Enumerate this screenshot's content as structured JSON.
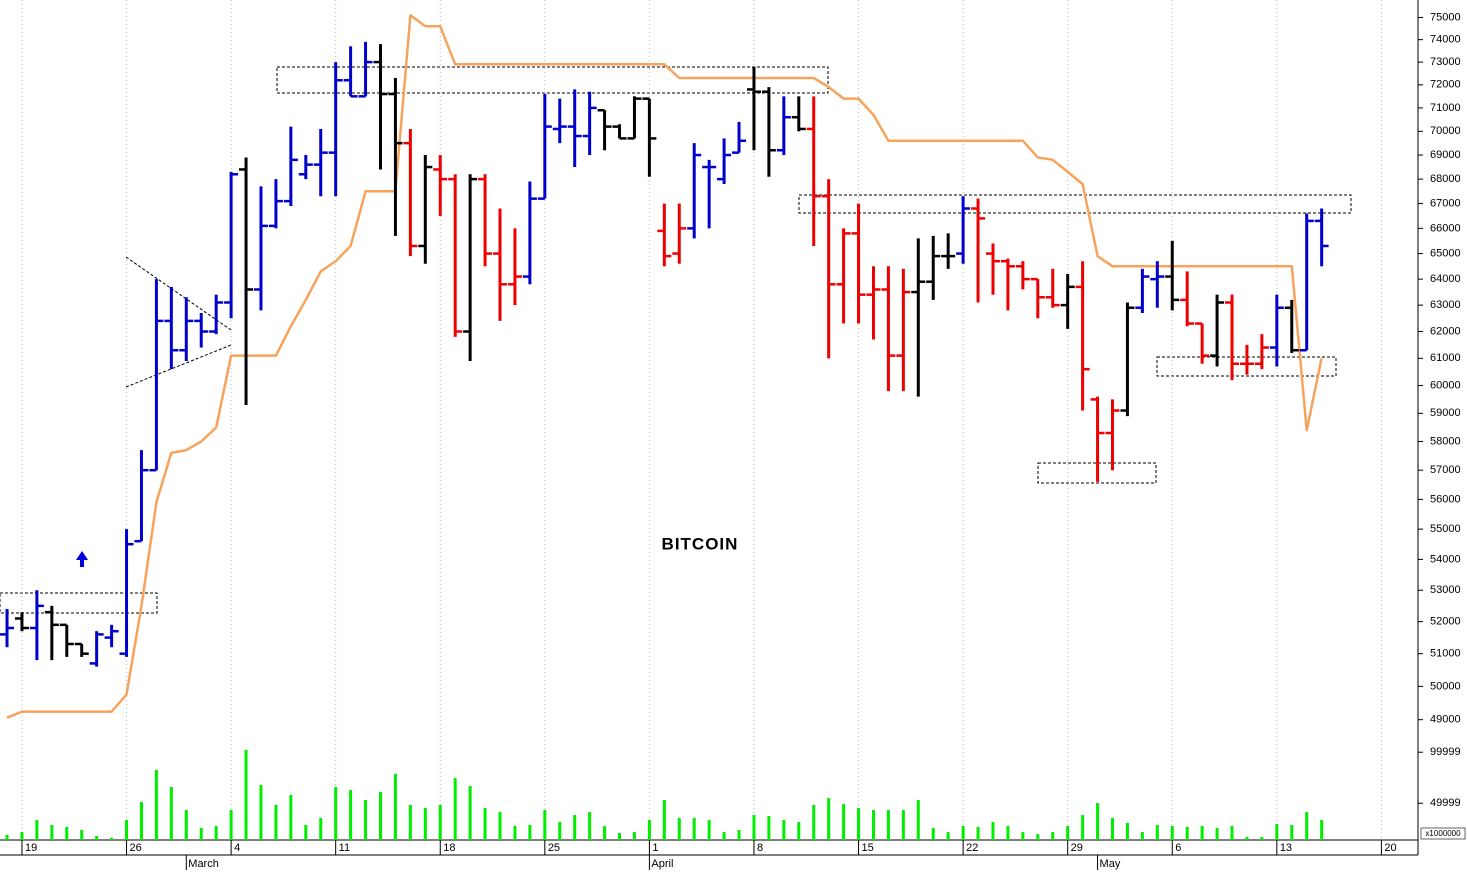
{
  "chart_data": {
    "type": "ohlc",
    "title": "BITCOIN",
    "log": true,
    "grid": true,
    "xlim": [
      -0.47,
      94.45
    ],
    "ylim": [
      48400,
      75800
    ],
    "yticks": [
      49000,
      50000,
      51000,
      52000,
      53000,
      54000,
      55000,
      56000,
      57000,
      58000,
      59000,
      60000,
      61000,
      62000,
      63000,
      64000,
      65000,
      66000,
      67000,
      68000,
      69000,
      70000,
      71000,
      72000,
      73000,
      74000,
      75000
    ],
    "xticks": [
      {
        "value": 1,
        "label": "19"
      },
      {
        "value": 8,
        "label": "26"
      },
      {
        "value": 15,
        "label": "4"
      },
      {
        "value": 22,
        "label": "11"
      },
      {
        "value": 29,
        "label": "18"
      },
      {
        "value": 36,
        "label": "25"
      },
      {
        "value": 43,
        "label": "1"
      },
      {
        "value": 50,
        "label": "8"
      },
      {
        "value": 57,
        "label": "15"
      },
      {
        "value": 64,
        "label": "22"
      },
      {
        "value": 71,
        "label": "29"
      },
      {
        "value": 78,
        "label": "6"
      },
      {
        "value": 85,
        "label": "13"
      },
      {
        "value": 92,
        "label": "20"
      }
    ],
    "month_ticks": [
      {
        "value": 12,
        "label": "March"
      },
      {
        "value": 43,
        "label": "April"
      },
      {
        "value": 73,
        "label": "May"
      }
    ],
    "x": [
      0,
      1,
      2,
      3,
      4,
      5,
      6,
      7,
      8,
      9,
      10,
      11,
      12,
      13,
      14,
      15,
      16,
      17,
      18,
      19,
      20,
      21,
      22,
      23,
      24,
      25,
      26,
      27,
      28,
      29,
      30,
      31,
      32,
      33,
      34,
      35,
      36,
      37,
      38,
      39,
      40,
      41,
      42,
      43,
      44,
      45,
      46,
      47,
      48,
      49,
      50,
      51,
      52,
      53,
      54,
      55,
      56,
      57,
      58,
      59,
      60,
      61,
      62,
      63,
      64,
      65,
      66,
      67,
      68,
      69,
      70,
      71,
      72,
      73,
      74,
      75,
      76,
      77,
      78,
      79,
      80,
      81,
      82,
      83,
      84,
      85,
      86,
      87,
      88
    ],
    "open": [
      51600,
      52100,
      51800,
      52300,
      51900,
      51300,
      50700,
      51500,
      51000,
      54600,
      57000,
      62400,
      61300,
      62400,
      62000,
      63100,
      68400,
      63600,
      66100,
      67100,
      68200,
      68600,
      69100,
      72200,
      71500,
      73000,
      71600,
      69500,
      65300,
      68400,
      68000,
      62000,
      68000,
      65000,
      63800,
      64100,
      67200,
      70100,
      70200,
      69800,
      70900,
      70200,
      69700,
      71400,
      65900,
      65000,
      66000,
      68500,
      68000,
      69100,
      71800,
      71700,
      69200,
      70600,
      70100,
      67300,
      63800,
      65800,
      63400,
      63600,
      61100,
      63500,
      63900,
      64900,
      65000,
      66800,
      65000,
      64700,
      64500,
      64000,
      63300,
      63000,
      63700,
      59500,
      58300,
      59100,
      62900,
      64000,
      64100,
      63200,
      62300,
      61100,
      63100,
      60800,
      60800,
      61400,
      62900,
      61300,
      66300
    ],
    "high": [
      52400,
      52300,
      53000,
      52500,
      51900,
      51300,
      51700,
      51900,
      55000,
      57700,
      64000,
      63700,
      63300,
      62700,
      63400,
      68300,
      68900,
      67700,
      68000,
      70200,
      69000,
      70100,
      73000,
      73700,
      73900,
      73800,
      72300,
      70100,
      69000,
      69000,
      68200,
      68200,
      68200,
      66800,
      66000,
      67900,
      71600,
      71400,
      71800,
      71700,
      70900,
      70300,
      71500,
      71400,
      67000,
      67000,
      69500,
      68800,
      69700,
      70400,
      72800,
      71900,
      71500,
      71500,
      71500,
      68000,
      66000,
      67000,
      64500,
      64500,
      64400,
      65600,
      65700,
      65800,
      67300,
      67200,
      65400,
      64800,
      64700,
      64000,
      64400,
      64200,
      64700,
      59600,
      59500,
      63100,
      64400,
      64700,
      65500,
      64300,
      62300,
      63400,
      63400,
      61500,
      61900,
      63400,
      63200,
      66600,
      66800
    ],
    "low": [
      51200,
      51700,
      50800,
      50800,
      50900,
      50900,
      50600,
      51200,
      50900,
      54600,
      57000,
      60600,
      60900,
      61400,
      61900,
      62500,
      59300,
      62800,
      66000,
      66900,
      68000,
      67300,
      67300,
      71500,
      71500,
      68400,
      65700,
      64900,
      64600,
      66500,
      61800,
      60900,
      64500,
      62400,
      63000,
      63800,
      67200,
      69500,
      68500,
      69000,
      69200,
      69700,
      69700,
      68100,
      64500,
      64600,
      65600,
      66000,
      67800,
      69100,
      69200,
      68100,
      69000,
      70000,
      65300,
      61000,
      62300,
      62300,
      61700,
      59800,
      59800,
      59600,
      63200,
      64400,
      64600,
      63100,
      63400,
      62800,
      63600,
      62500,
      62900,
      62100,
      59100,
      56600,
      57000,
      58900,
      62700,
      62900,
      62800,
      62200,
      60800,
      60700,
      60200,
      60400,
      60600,
      60700,
      61200,
      61300,
      64500
    ],
    "close": [
      51800,
      51800,
      52500,
      51900,
      51300,
      51000,
      51600,
      51700,
      54500,
      57000,
      62400,
      61300,
      62400,
      62000,
      63100,
      68200,
      63600,
      66100,
      67100,
      68800,
      68600,
      69100,
      72200,
      71500,
      73000,
      71600,
      69500,
      65300,
      68500,
      68000,
      62000,
      68000,
      65000,
      63800,
      64100,
      67200,
      70200,
      70200,
      69800,
      71000,
      70200,
      69700,
      71400,
      69700,
      64900,
      66000,
      69000,
      68500,
      69000,
      69600,
      71700,
      69200,
      70600,
      70100,
      67300,
      63800,
      65800,
      63400,
      63600,
      61100,
      63500,
      63900,
      64900,
      64900,
      66800,
      66400,
      64700,
      64500,
      64000,
      63300,
      63000,
      63700,
      60600,
      58300,
      59100,
      62900,
      64100,
      64100,
      63200,
      62300,
      61100,
      63100,
      60800,
      60800,
      61400,
      62900,
      61300,
      66300,
      65300
    ],
    "bar_colors": [
      "#0000cc",
      "#000000",
      "#0000cc",
      "#000000",
      "#000000",
      "#000000",
      "#0000cc",
      "#0000cc",
      "#0000cc",
      "#0000cc",
      "#0000cc",
      "#0000cc",
      "#0000cc",
      "#0000cc",
      "#0000cc",
      "#0000cc",
      "#000000",
      "#0000cc",
      "#0000cc",
      "#0000cc",
      "#0000cc",
      "#0000cc",
      "#0000cc",
      "#0000cc",
      "#0000cc",
      "#000000",
      "#000000",
      "#ee0000",
      "#000000",
      "#ee0000",
      "#ee0000",
      "#000000",
      "#ee0000",
      "#ee0000",
      "#ee0000",
      "#0000cc",
      "#0000cc",
      "#0000cc",
      "#0000cc",
      "#0000cc",
      "#000000",
      "#000000",
      "#000000",
      "#000000",
      "#ee0000",
      "#ee0000",
      "#0000cc",
      "#0000cc",
      "#0000cc",
      "#0000cc",
      "#000000",
      "#000000",
      "#0000cc",
      "#000000",
      "#ee0000",
      "#ee0000",
      "#ee0000",
      "#ee0000",
      "#ee0000",
      "#ee0000",
      "#ee0000",
      "#000000",
      "#000000",
      "#000000",
      "#0000cc",
      "#ee0000",
      "#ee0000",
      "#ee0000",
      "#ee0000",
      "#ee0000",
      "#ee0000",
      "#000000",
      "#ee0000",
      "#ee0000",
      "#ee0000",
      "#000000",
      "#0000cc",
      "#0000cc",
      "#000000",
      "#ee0000",
      "#ee0000",
      "#000000",
      "#ee0000",
      "#ee0000",
      "#ee0000",
      "#0000cc",
      "#000000",
      "#0000cc",
      "#0000cc"
    ],
    "line": {
      "color": "#f7a35c",
      "values": [
        49060,
        49240,
        49240,
        49240,
        49240,
        49240,
        49240,
        49240,
        49750,
        52500,
        55900,
        57600,
        57700,
        58000,
        58500,
        61100,
        61100,
        61100,
        61100,
        62200,
        63200,
        64300,
        64700,
        65300,
        67500,
        67500,
        67500,
        75100,
        74600,
        74600,
        72900,
        72900,
        72900,
        72900,
        72900,
        72900,
        72900,
        72900,
        72900,
        72900,
        72900,
        72900,
        72900,
        72900,
        72900,
        72300,
        72300,
        72300,
        72300,
        72300,
        72300,
        72300,
        72300,
        72300,
        72300,
        71900,
        71400,
        71400,
        70700,
        69600,
        69600,
        69600,
        69600,
        69600,
        69600,
        69600,
        69600,
        69600,
        69600,
        68900,
        68800,
        68300,
        67800,
        64900,
        64500,
        64500,
        64500,
        64500,
        64500,
        64500,
        64500,
        64500,
        64500,
        64500,
        64500,
        64500,
        64500,
        58400,
        61000
      ]
    },
    "volume": {
      "color": "#00ee00",
      "ylim": [
        14000,
        110000
      ],
      "yticks": [
        49999,
        99999
      ],
      "unit_label": "x1000000",
      "values": [
        18900,
        21800,
        33600,
        28700,
        26700,
        23800,
        17900,
        16000,
        33600,
        51200,
        82600,
        65900,
        43400,
        25800,
        27700,
        43400,
        102200,
        67900,
        48300,
        58100,
        28700,
        35600,
        65900,
        63000,
        53200,
        61000,
        78700,
        48300,
        45300,
        48300,
        74700,
        66900,
        45300,
        41400,
        27700,
        28700,
        43400,
        31600,
        38500,
        41400,
        27700,
        20900,
        21800,
        33600,
        53200,
        35600,
        35600,
        33600,
        21800,
        23800,
        38500,
        37500,
        33600,
        31600,
        48300,
        55100,
        49300,
        45300,
        43400,
        43400,
        43400,
        53200,
        25800,
        21800,
        27700,
        26700,
        31600,
        27700,
        21800,
        19900,
        21800,
        27700,
        38500,
        50200,
        35600,
        30700,
        21800,
        28700,
        27700,
        26700,
        27700,
        25800,
        27700,
        16900,
        16900,
        29700,
        28700,
        41400,
        33600
      ]
    }
  }
}
